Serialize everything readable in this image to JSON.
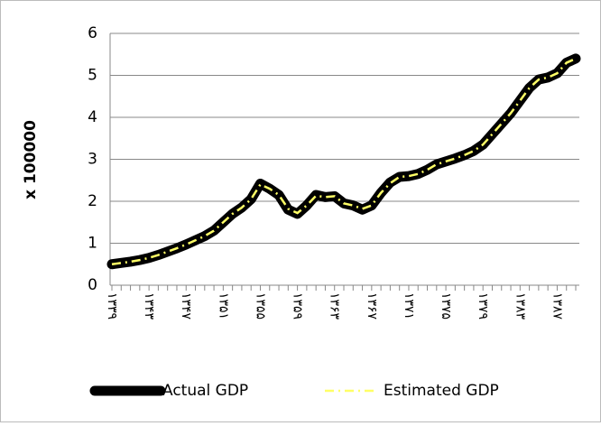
{
  "chart_data": {
    "type": "line",
    "y_label": "x 100000",
    "categories": [
      "۱۳۳۹",
      null,
      null,
      null,
      "۱۳۴۳",
      null,
      null,
      null,
      "۱۳۴۷",
      null,
      null,
      null,
      "۱۳۵۱",
      null,
      null,
      null,
      "۱۳۵۵",
      null,
      null,
      null,
      "۱۳۵۹",
      null,
      null,
      null,
      "۱۳۶۳",
      null,
      null,
      null,
      "۱۳۶۷",
      null,
      null,
      null,
      "۱۳۷۱",
      null,
      null,
      null,
      "۱۳۷۵",
      null,
      null,
      null,
      "۱۳۷۹",
      null,
      null,
      null,
      "۱۳۸۳",
      null,
      null,
      null,
      "۱۳۸۷",
      null,
      null
    ],
    "series": [
      {
        "name": "Actual GDP",
        "color": "#000000",
        "values": [
          0.5,
          0.53,
          0.56,
          0.6,
          0.65,
          0.72,
          0.8,
          0.88,
          0.97,
          1.07,
          1.17,
          1.3,
          1.5,
          1.7,
          1.85,
          2.05,
          2.42,
          2.3,
          2.15,
          1.8,
          1.7,
          1.9,
          2.15,
          2.1,
          2.12,
          1.95,
          1.9,
          1.8,
          1.9,
          2.2,
          2.45,
          2.58,
          2.6,
          2.65,
          2.75,
          2.88,
          2.95,
          3.02,
          3.1,
          3.2,
          3.35,
          3.6,
          3.85,
          4.1,
          4.4,
          4.7,
          4.9,
          4.95,
          5.05,
          5.3,
          5.4
        ]
      },
      {
        "name": "Estimated GDP",
        "color": "#ffff66",
        "values": [
          0.5,
          0.53,
          0.56,
          0.6,
          0.65,
          0.72,
          0.8,
          0.88,
          0.97,
          1.07,
          1.17,
          1.3,
          1.5,
          1.7,
          1.85,
          2.05,
          2.4,
          2.3,
          2.15,
          1.82,
          1.72,
          1.9,
          2.13,
          2.1,
          2.12,
          1.95,
          1.9,
          1.82,
          1.9,
          2.2,
          2.43,
          2.58,
          2.6,
          2.65,
          2.75,
          2.88,
          2.95,
          3.02,
          3.1,
          3.2,
          3.35,
          3.6,
          3.85,
          4.1,
          4.4,
          4.7,
          4.9,
          4.95,
          5.05,
          5.3,
          5.4
        ]
      }
    ],
    "ylim": [
      0,
      6
    ],
    "yticks": [
      0,
      1,
      2,
      3,
      4,
      5,
      6
    ],
    "grid": true,
    "legend": "bottom"
  }
}
